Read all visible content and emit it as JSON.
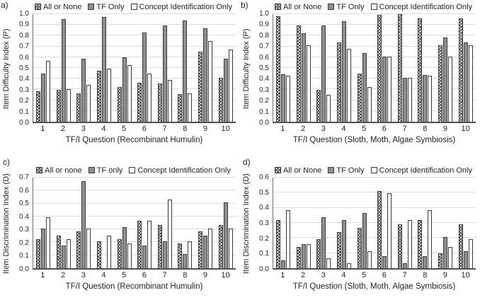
{
  "colors": {
    "bar_gray": "#8f8f8f",
    "bar_border": "#3a3a3a",
    "gridline": "#dcdcdc",
    "axis": "#515151",
    "text": "#1f1f1f"
  },
  "chart_data": [
    {
      "type": "bar",
      "panel_label": "a)",
      "ylabel": "Item Difficulty Index (P)",
      "xlabel": "TF/I Question (Recombinant Humulin)",
      "ylim": [
        0,
        1.0
      ],
      "ytick_step": 0.1,
      "grid": true,
      "legend_position": "top",
      "categories": [
        "1",
        "2",
        "3",
        "4",
        "5",
        "6",
        "7",
        "8",
        "9",
        "10"
      ],
      "series": [
        {
          "name": "All or None",
          "style": "hatched",
          "values": [
            0.28,
            0.29,
            0.26,
            0.47,
            0.32,
            0.36,
            0.35,
            0.25,
            0.64,
            0.4
          ]
        },
        {
          "name": "TF Only",
          "style": "gray",
          "values": [
            0.44,
            0.94,
            0.575,
            0.96,
            0.59,
            0.82,
            0.88,
            0.93,
            0.86,
            0.58
          ]
        },
        {
          "name": "Concept Identification Only",
          "style": "white",
          "values": [
            0.56,
            0.3,
            0.335,
            0.49,
            0.52,
            0.44,
            0.385,
            0.26,
            0.74,
            0.66
          ]
        }
      ]
    },
    {
      "type": "bar",
      "panel_label": "b)",
      "ylabel": "Item Difficulty Index (P)",
      "xlabel": "TF/I Question (Sloth, Moth, Algae Symbiosis)",
      "ylim": [
        0,
        1.0
      ],
      "ytick_step": 0.1,
      "grid": true,
      "legend_position": "top",
      "categories": [
        "1",
        "2",
        "3",
        "4",
        "5",
        "6",
        "7",
        "8",
        "9",
        "10"
      ],
      "series": [
        {
          "name": "All or None",
          "style": "hatched",
          "values": [
            0.97,
            0.88,
            0.29,
            0.73,
            0.44,
            0.98,
            0.99,
            0.95,
            0.7,
            0.95
          ]
        },
        {
          "name": "TF Only",
          "style": "gray",
          "values": [
            0.435,
            0.81,
            0.88,
            0.92,
            0.63,
            0.6,
            0.4,
            0.43,
            0.77,
            0.73
          ]
        },
        {
          "name": "Concept Identification Only",
          "style": "white",
          "values": [
            0.42,
            0.7,
            0.245,
            0.67,
            0.315,
            0.6,
            0.4,
            0.425,
            0.595,
            0.7
          ]
        }
      ]
    },
    {
      "type": "bar",
      "panel_label": "c)",
      "ylabel": "Item Discrimination Index (D)",
      "xlabel": "TF/I Question (Recombinant Humulin)",
      "ylim": [
        0,
        0.7
      ],
      "ytick_step": 0.1,
      "grid": true,
      "legend_position": "top",
      "categories": [
        "1",
        "2",
        "3",
        "4",
        "5",
        "6",
        "7",
        "8",
        "9",
        "10"
      ],
      "series": [
        {
          "name": "All or none",
          "style": "hatched",
          "values": [
            0.22,
            0.25,
            0.28,
            0.205,
            0.22,
            0.36,
            0.33,
            0.19,
            0.28,
            0.33
          ]
        },
        {
          "name": "TF only",
          "style": "gray",
          "values": [
            0.3,
            0.17,
            0.66,
            0,
            0.31,
            0.17,
            0.205,
            0.11,
            0.25,
            0.5
          ]
        },
        {
          "name": "Concept Identification Only",
          "style": "white",
          "values": [
            0.39,
            0.22,
            0.3,
            0.25,
            0.19,
            0.36,
            0.52,
            0.205,
            0.3,
            0.3
          ]
        }
      ]
    },
    {
      "type": "bar",
      "panel_label": "d)",
      "ylabel": "Item Discrimination Index (D)",
      "xlabel": "TF/I Question (Sloth, Moth, Algae Symbiosis)",
      "ylim": [
        0,
        0.6
      ],
      "ytick_step": 0.1,
      "grid": true,
      "legend_position": "top",
      "categories": [
        "1",
        "2",
        "3",
        "4",
        "5",
        "6",
        "7",
        "8",
        "9",
        "10"
      ],
      "series": [
        {
          "name": "All or None",
          "style": "hatched",
          "values": [
            0.315,
            0.14,
            0.19,
            0.235,
            0.265,
            0.505,
            0.285,
            0.315,
            0.095,
            0.285
          ]
        },
        {
          "name": "TF Only",
          "style": "gray",
          "values": [
            0.05,
            0.155,
            0.33,
            0.315,
            0.36,
            0.08,
            0.03,
            0.08,
            0.205,
            0.11
          ]
        },
        {
          "name": "Concept Identification Only",
          "style": "white",
          "values": [
            0.38,
            0.155,
            0.065,
            0.03,
            0.11,
            0.49,
            0.315,
            0.38,
            0.14,
            0.19
          ]
        }
      ]
    }
  ]
}
